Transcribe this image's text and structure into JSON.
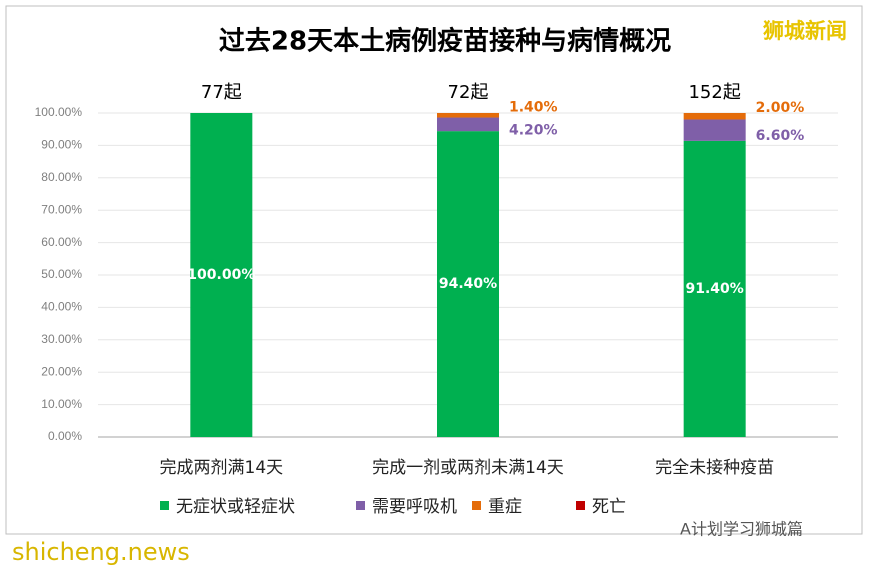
{
  "chart_data": {
    "type": "stacked_bar",
    "title": "过去28天本土病例疫苗接种与病情概况",
    "categories": [
      "完成两剂满14天",
      "完成一剂或两剂未满14天",
      "完全未接种疫苗"
    ],
    "bar_top_labels": [
      "77起",
      "72起",
      "152起"
    ],
    "series": [
      {
        "name": "无症状或轻症状",
        "color": "#00b050",
        "values": [
          100,
          94.4,
          91.4
        ],
        "value_labels": [
          "100.00%",
          "94.40%",
          "91.40%"
        ]
      },
      {
        "name": "需要呼吸机",
        "color": "#7f5fa8",
        "values": [
          0,
          4.2,
          6.6
        ],
        "value_labels": [
          null,
          "4.20%",
          "6.60%"
        ]
      },
      {
        "name": "重症",
        "color": "#e46c0a",
        "values": [
          0,
          1.4,
          2.0
        ],
        "value_labels": [
          null,
          "1.40%",
          "2.00%"
        ]
      },
      {
        "name": "死亡",
        "color": "#c00000",
        "values": [
          0,
          0,
          0
        ]
      }
    ],
    "ylim": [
      0,
      100
    ],
    "yticks": [
      {
        "value": 0,
        "label": "0.00%"
      },
      {
        "value": 10,
        "label": "10.00%"
      },
      {
        "value": 20,
        "label": "20.00%"
      },
      {
        "value": 30,
        "label": "30.00%"
      },
      {
        "value": 40,
        "label": "40.00%"
      },
      {
        "value": 50,
        "label": "50.00%"
      },
      {
        "value": 60,
        "label": "60.00%"
      },
      {
        "value": 70,
        "label": "70.00%"
      },
      {
        "value": 80,
        "label": "80.00%"
      },
      {
        "value": 90,
        "label": "90.00%"
      },
      {
        "value": 100,
        "label": "100.00%"
      }
    ],
    "grid": true,
    "watermarks": [
      "狮城新闻",
      "shicheng.news",
      "A计划学习狮城篇"
    ]
  }
}
